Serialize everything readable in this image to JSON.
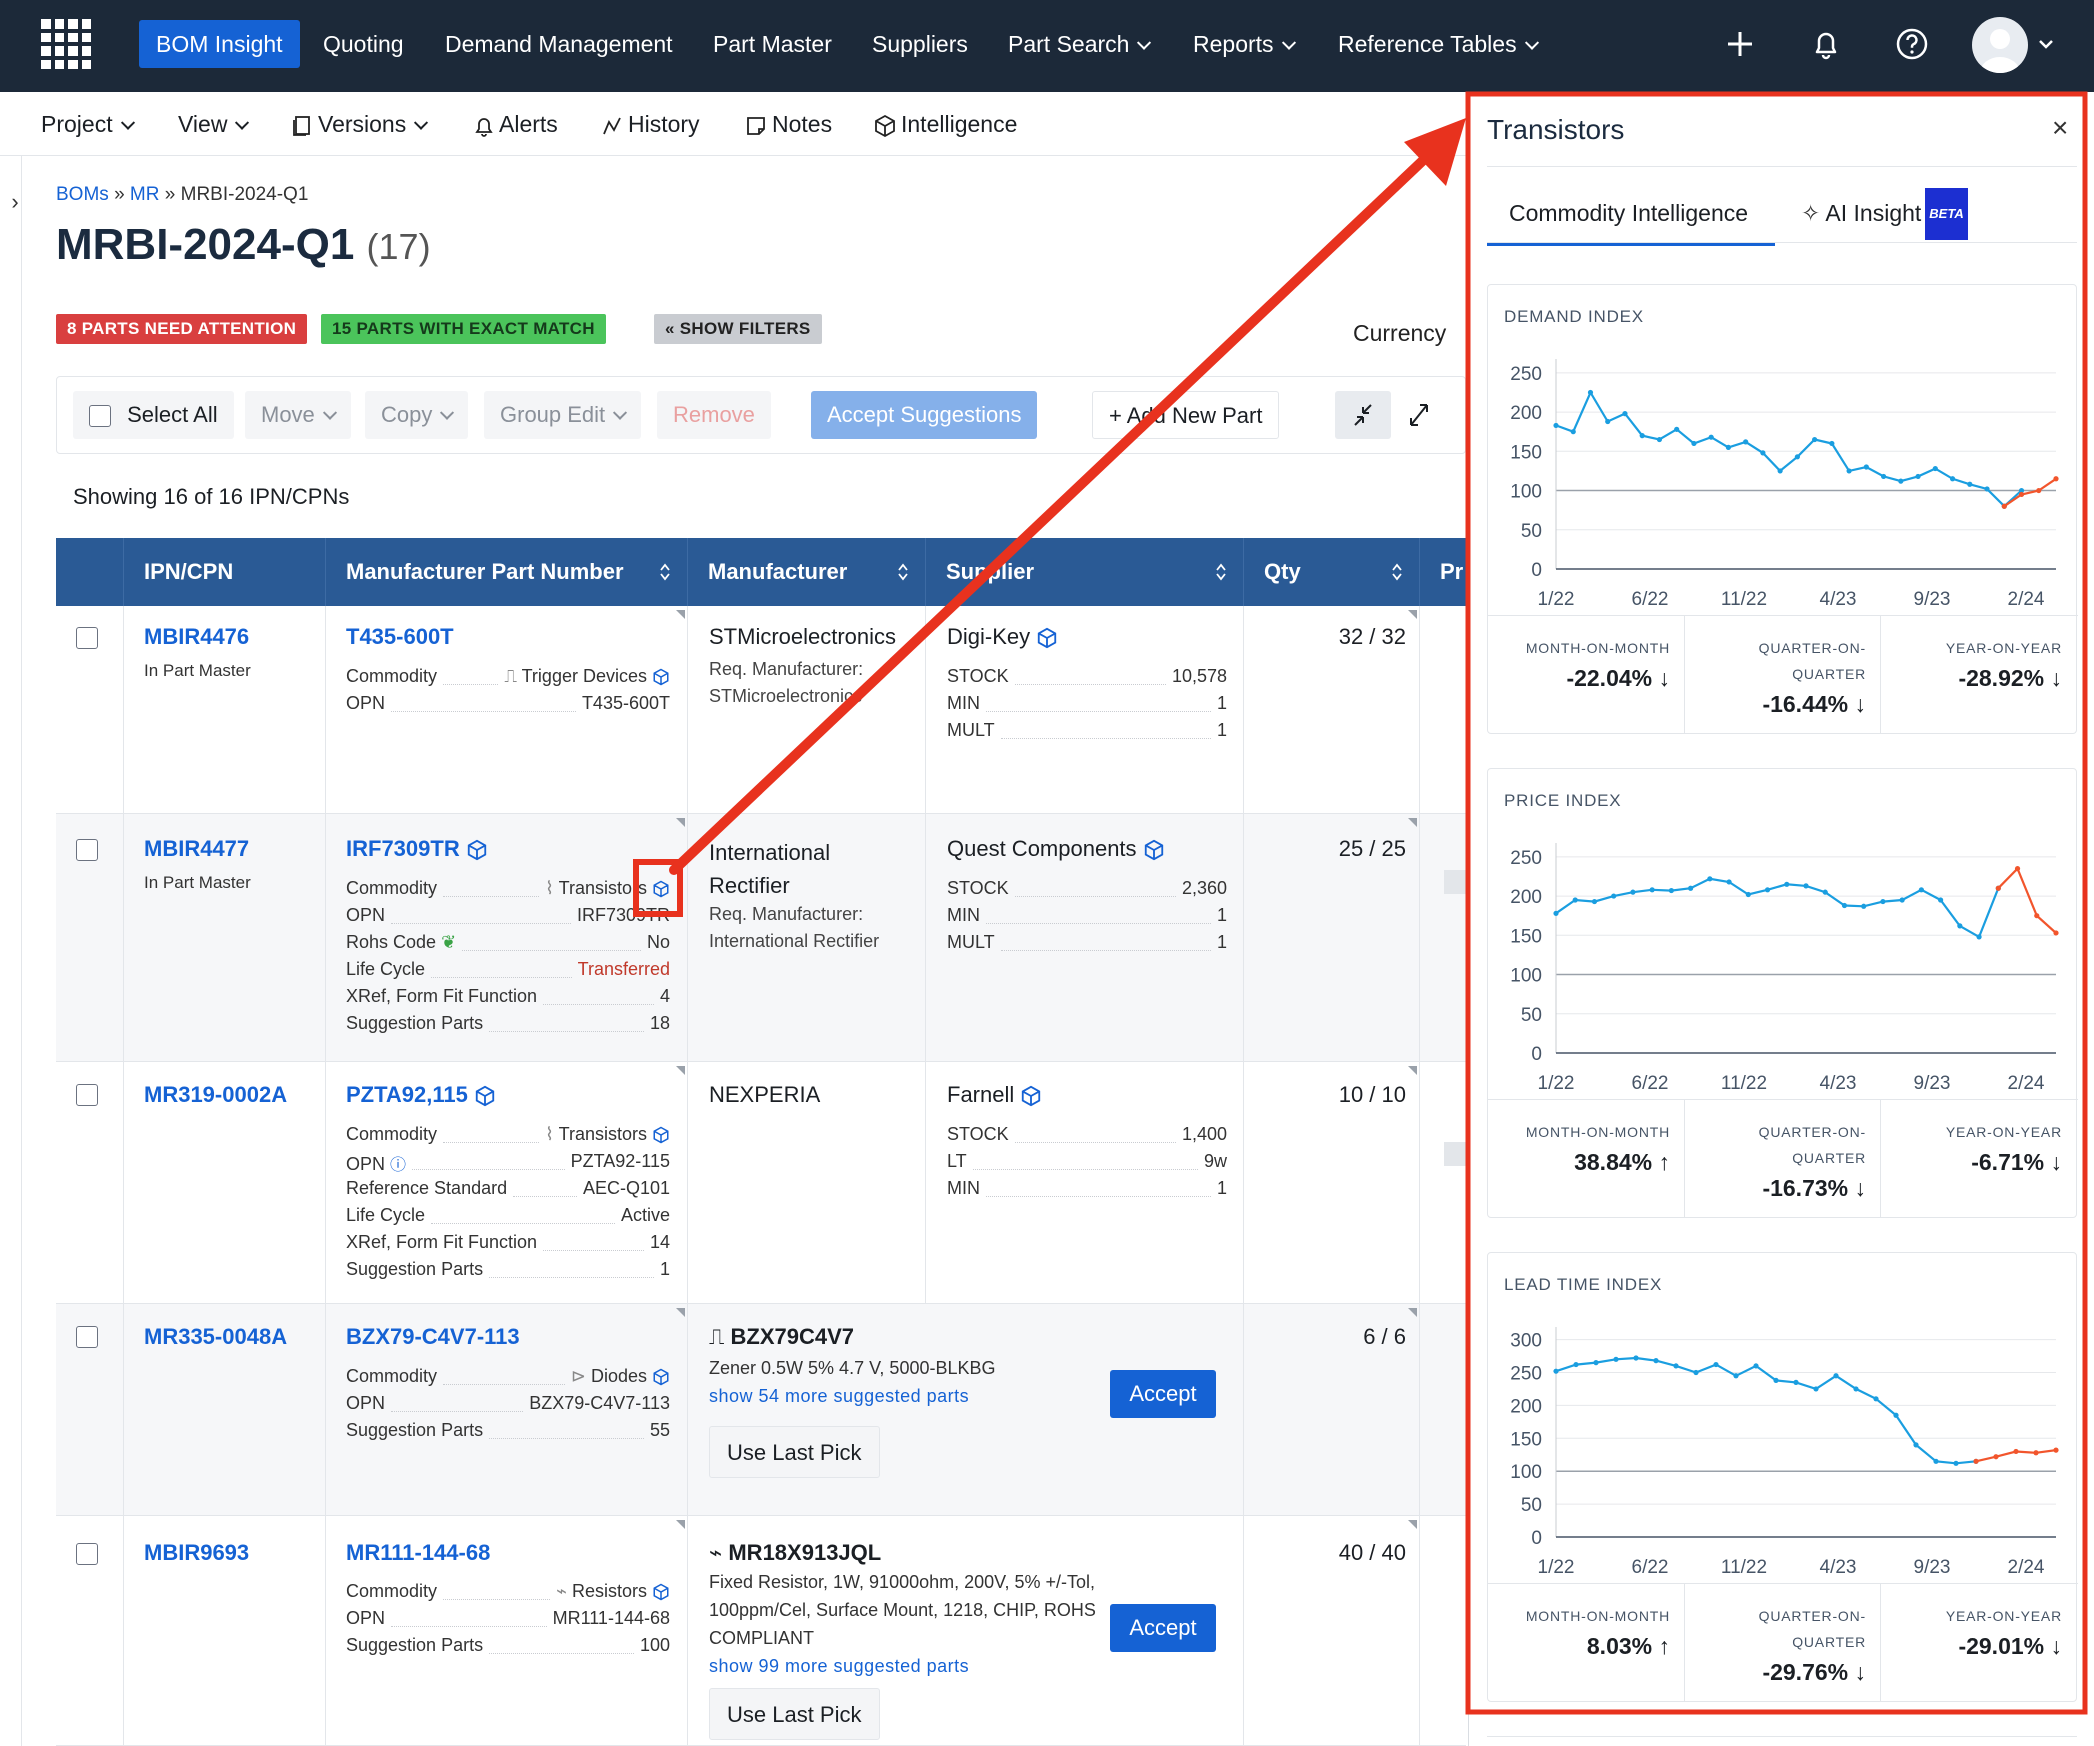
{
  "nav": {
    "items": [
      "BOM Insight",
      "Quoting",
      "Demand Management",
      "Part Master",
      "Suppliers",
      "Part Search",
      "Reports",
      "Reference Tables"
    ],
    "active": "BOM Insight"
  },
  "subnav": {
    "items": [
      "Project",
      "View",
      "Versions",
      "Alerts",
      "History",
      "Notes",
      "Intelligence"
    ]
  },
  "breadcrumb": {
    "root": "BOMs",
    "sep1": "»",
    "mid": "MR",
    "sep2": "»",
    "current": "MRBI-2024-Q1"
  },
  "page": {
    "title": "MRBI-2024-Q1",
    "count": "(17)"
  },
  "badges": {
    "attention": "8 PARTS NEED ATTENTION",
    "exact": "15 PARTS WITH EXACT MATCH",
    "filters": "« SHOW FILTERS"
  },
  "currency_label": "Currency",
  "toolbar": {
    "select_all": "Select All",
    "move": "Move",
    "copy": "Copy",
    "group_edit": "Group Edit",
    "remove": "Remove",
    "accept_suggestions": "Accept Suggestions",
    "add_new_part": "+ Add New Part"
  },
  "showing": "Showing 16 of 16 IPN/CPNs",
  "table": {
    "headers": {
      "ipn": "IPN/CPN",
      "mpn": "Manufacturer Part Number",
      "mfr": "Manufacturer",
      "supplier": "Supplier",
      "qty": "Qty",
      "price": "Pr"
    },
    "rows": [
      {
        "ipn": "MBIR4476",
        "ipn_sub": "In Part Master",
        "mpn": "T435-600T",
        "attrs": [
          {
            "k": "Commodity",
            "v": "Trigger Devices"
          },
          {
            "k": "OPN",
            "v": "T435-600T"
          }
        ],
        "mfr": "STMicroelectronics",
        "mfr_sub1": "Req. Manufacturer:",
        "mfr_sub2": "STMicroelectronics",
        "supplier": "Digi-Key",
        "stock": [
          {
            "k": "STOCK",
            "v": "10,578"
          },
          {
            "k": "MIN",
            "v": "1"
          },
          {
            "k": "MULT",
            "v": "1"
          }
        ],
        "qty": "32 / 32"
      },
      {
        "ipn": "MBIR4477",
        "ipn_sub": "In Part Master",
        "mpn": "IRF7309TR",
        "attrs": [
          {
            "k": "Commodity",
            "v": "Transistors"
          },
          {
            "k": "OPN",
            "v": "IRF7309TR"
          },
          {
            "k": "Rohs Code",
            "v": "No"
          },
          {
            "k": "Life Cycle",
            "v": "Transferred"
          },
          {
            "k": "XRef, Form Fit Function",
            "v": "4"
          },
          {
            "k": "Suggestion Parts",
            "v": "18"
          }
        ],
        "mfr": "International Rectifier",
        "mfr_sub1": "Req. Manufacturer:",
        "mfr_sub2": "International Rectifier",
        "supplier": "Quest Components",
        "stock": [
          {
            "k": "STOCK",
            "v": "2,360"
          },
          {
            "k": "MIN",
            "v": "1"
          },
          {
            "k": "MULT",
            "v": "1"
          }
        ],
        "qty": "25 / 25"
      },
      {
        "ipn": "MR319-0002A",
        "mpn": "PZTA92,115",
        "attrs": [
          {
            "k": "Commodity",
            "v": "Transistors"
          },
          {
            "k": "OPN",
            "v": "PZTA92-115"
          },
          {
            "k": "Reference Standard",
            "v": "AEC-Q101"
          },
          {
            "k": "Life Cycle",
            "v": "Active"
          },
          {
            "k": "XRef, Form Fit Function",
            "v": "14"
          },
          {
            "k": "Suggestion Parts",
            "v": "1"
          }
        ],
        "mfr": "NEXPERIA",
        "supplier": "Farnell",
        "stock": [
          {
            "k": "STOCK",
            "v": "1,400"
          },
          {
            "k": "LT",
            "v": "9w"
          },
          {
            "k": "MIN",
            "v": "1"
          }
        ],
        "qty": "10 / 10"
      },
      {
        "ipn": "MR335-0048A",
        "mpn": "BZX79-C4V7-113",
        "attrs": [
          {
            "k": "Commodity",
            "v": "Diodes"
          },
          {
            "k": "OPN",
            "v": "BZX79-C4V7-113"
          },
          {
            "k": "Suggestion Parts",
            "v": "55"
          }
        ],
        "sug_title": "BZX79C4V7",
        "sug_desc": "Zener 0.5W 5% 4.7 V, 5000-BLKBG",
        "sug_link": "show 54 more suggested parts",
        "accept": "Accept",
        "last_pick": "Use Last Pick",
        "qty": "6 / 6"
      },
      {
        "ipn": "MBIR9693",
        "mpn": "MR111-144-68",
        "attrs": [
          {
            "k": "Commodity",
            "v": "Resistors"
          },
          {
            "k": "OPN",
            "v": "MR111-144-68"
          },
          {
            "k": "Suggestion Parts",
            "v": "100"
          }
        ],
        "sug_title": "MR18X913JQL",
        "sug_desc": "Fixed Resistor, 1W, 91000ohm, 200V, 5% +/-Tol, 100ppm/Cel, Surface Mount, 1218, CHIP, ROHS COMPLIANT",
        "sug_link": "show 99 more suggested parts",
        "accept": "Accept",
        "last_pick": "Use Last Pick",
        "qty": "40 / 40"
      }
    ]
  },
  "panel": {
    "title": "Transistors",
    "close": "×",
    "tabs": [
      "Commodity Intelligence",
      "AI Insight"
    ],
    "beta": "BETA",
    "metric_labels": {
      "mom": "MONTH-ON-MONTH",
      "qoq1": "QUARTER-ON-",
      "qoq2": "QUARTER",
      "yoy": "YEAR-ON-YEAR"
    },
    "colors": {
      "history": "#1a9ee0",
      "forecast": "#f2552c"
    }
  },
  "chart_data": [
    {
      "type": "line",
      "title": "DEMAND INDEX",
      "x_ticks": [
        "1/22",
        "6/22",
        "11/22",
        "4/23",
        "9/23",
        "2/24"
      ],
      "y_ticks": [
        0,
        50,
        100,
        150,
        200,
        250
      ],
      "ylim": [
        0,
        260
      ],
      "series": [
        {
          "values": [
            183,
            175,
            225,
            188,
            198,
            170,
            165,
            178,
            160,
            168,
            155,
            162,
            148,
            125,
            143,
            165,
            160,
            125,
            130,
            118,
            112,
            118,
            128,
            115,
            108,
            102,
            80,
            100
          ]
        },
        {
          "values": [
            null,
            null,
            null,
            null,
            null,
            null,
            null,
            null,
            null,
            null,
            null,
            null,
            null,
            null,
            null,
            null,
            null,
            null,
            null,
            null,
            null,
            null,
            null,
            null,
            null,
            null,
            80,
            95,
            100,
            115
          ]
        }
      ],
      "metrics": {
        "mom": "-22.04%",
        "mom_dir": "down",
        "qoq": "-16.44%",
        "qoq_dir": "down",
        "yoy": "-28.92%",
        "yoy_dir": "down"
      }
    },
    {
      "type": "line",
      "title": "PRICE INDEX",
      "x_ticks": [
        "1/22",
        "6/22",
        "11/22",
        "4/23",
        "9/23",
        "2/24"
      ],
      "y_ticks": [
        0,
        50,
        100,
        150,
        200,
        250
      ],
      "ylim": [
        0,
        260
      ],
      "series": [
        {
          "values": [
            178,
            195,
            193,
            200,
            205,
            208,
            207,
            210,
            222,
            218,
            202,
            208,
            215,
            213,
            205,
            188,
            187,
            193,
            195,
            208,
            195,
            162,
            148,
            210
          ]
        },
        {
          "values": [
            null,
            null,
            null,
            null,
            null,
            null,
            null,
            null,
            null,
            null,
            null,
            null,
            null,
            null,
            null,
            null,
            null,
            null,
            null,
            null,
            null,
            null,
            null,
            210,
            235,
            175,
            153
          ]
        }
      ],
      "metrics": {
        "mom": "38.84%",
        "mom_dir": "up",
        "qoq": "-16.73%",
        "qoq_dir": "down",
        "yoy": "-6.71%",
        "yoy_dir": "down"
      }
    },
    {
      "type": "line",
      "title": "LEAD TIME INDEX",
      "x_ticks": [
        "1/22",
        "6/22",
        "11/22",
        "4/23",
        "9/23",
        "2/24"
      ],
      "y_ticks": [
        0,
        50,
        100,
        150,
        200,
        250,
        300
      ],
      "ylim": [
        0,
        310
      ],
      "series": [
        {
          "values": [
            252,
            262,
            265,
            270,
            272,
            268,
            260,
            250,
            262,
            245,
            260,
            238,
            235,
            225,
            245,
            225,
            210,
            185,
            140,
            115,
            112,
            115
          ]
        },
        {
          "values": [
            null,
            null,
            null,
            null,
            null,
            null,
            null,
            null,
            null,
            null,
            null,
            null,
            null,
            null,
            null,
            null,
            null,
            null,
            null,
            null,
            null,
            115,
            122,
            130,
            128,
            132
          ]
        }
      ],
      "metrics": {
        "mom": "8.03%",
        "mom_dir": "up",
        "qoq": "-29.76%",
        "qoq_dir": "down",
        "yoy": "-29.01%",
        "yoy_dir": "down"
      }
    }
  ]
}
